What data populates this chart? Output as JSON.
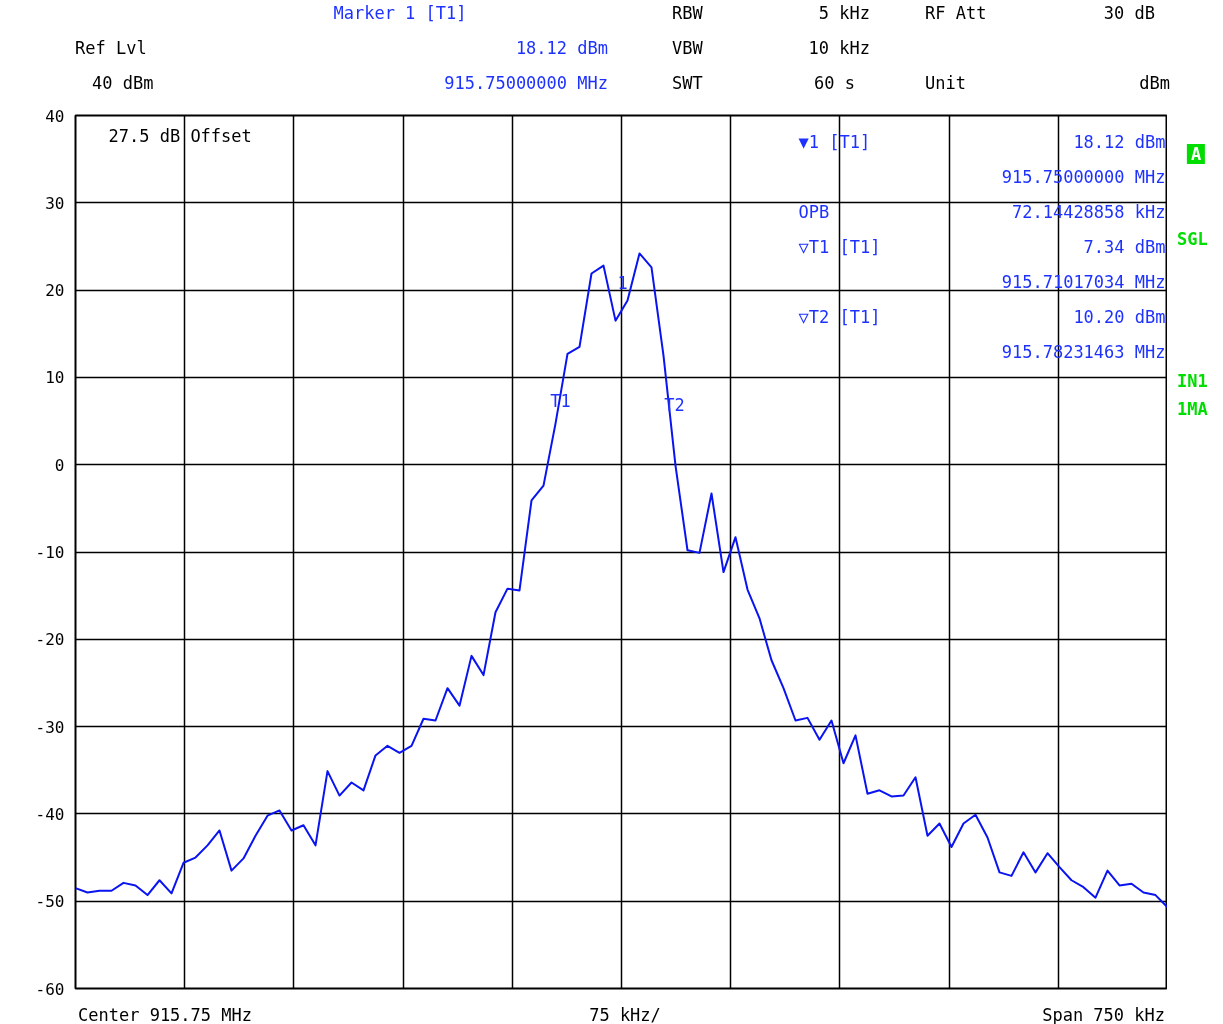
{
  "chart_data": {
    "type": "line",
    "categories": [
      null,
      null,
      null,
      null,
      null,
      null,
      null,
      null,
      null,
      null,
      null,
      null,
      null,
      null,
      null,
      null,
      null,
      null,
      null,
      null,
      null,
      null,
      null,
      null,
      null,
      null,
      null,
      null,
      null,
      null,
      null,
      null,
      null,
      null,
      null,
      null,
      null,
      null,
      null,
      null,
      null,
      null,
      null,
      null,
      null,
      null,
      null,
      null,
      null,
      null,
      null,
      null,
      null,
      null,
      null,
      null,
      null,
      null,
      null,
      null,
      null,
      null,
      null,
      null,
      null,
      null,
      null,
      null,
      null,
      null,
      null,
      null,
      null,
      null,
      null,
      null,
      null,
      null,
      null,
      null,
      null,
      null,
      null,
      null,
      null,
      null,
      null,
      null,
      null,
      null,
      null,
      null
    ],
    "ylim": [
      -60,
      40
    ],
    "yticks": [
      -60,
      -50,
      -40,
      -30,
      -20,
      -10,
      0,
      10,
      20,
      30,
      40
    ],
    "grid": true,
    "line_style": "solid",
    "series": [
      {
        "color": "#0a14f0",
        "values": [
          -48.5,
          -49,
          -48.8,
          -48.8,
          -47.9,
          -48.2,
          -49.3,
          -47.6,
          -49.1,
          -45.6,
          -45.0,
          -43.6,
          -41.9,
          -46.5,
          -45.1,
          -42.5,
          -40.2,
          -39.6,
          -41.9,
          -41.3,
          -43.6,
          -35.1,
          -37.9,
          -36.4,
          -37.3,
          -33.3,
          -32.2,
          -33.0,
          -32.2,
          -29.1,
          -29.3,
          -25.6,
          -27.6,
          -21.9,
          -24.1,
          -16.9,
          -14.2,
          -14.4,
          -4.1,
          -2.4,
          4.7,
          12.7,
          13.5,
          21.9,
          22.8,
          16.5,
          18.8,
          24.2,
          22.6,
          12.5,
          -0.1,
          -9.8,
          -10.1,
          -3.3,
          -12.3,
          -8.3,
          -14.3,
          -17.6,
          -22.4,
          -25.6,
          -29.3,
          -29.0,
          -31.5,
          -29.3,
          -34.2,
          -31.0,
          -37.7,
          -37.3,
          -38.0,
          -37.9,
          -35.8,
          -42.5,
          -41.1,
          -43.8,
          -41.1,
          -40.1,
          -42.7,
          -46.7,
          -47.1,
          -44.4,
          -46.7,
          -44.5,
          -46.1,
          -47.6,
          -48.4,
          -49.6,
          -46.5,
          -48.2,
          -48.0,
          -49.0,
          -49.3,
          -50.7
        ]
      }
    ],
    "annotations": [
      "Marker 1 [T1]",
      "18.12 dBm",
      "915.75000000 MHz",
      "RBW",
      "5 kHz",
      "VBW",
      "10 kHz",
      "SWT",
      "60 s",
      "RF Att",
      "30 dB",
      "Unit",
      "dBm",
      "Ref Lvl",
      "40 dBm",
      "27.5 dB Offset",
      "▼1 [T1]",
      "18.12 dBm",
      "915.75000000 MHz",
      "OPB",
      "72.14428858 kHz",
      "▽T1 [T1]",
      "7.34 dBm",
      "915.71017034 MHz",
      "▽T2 [T1]",
      "10.20 dBm",
      "915.78231463 MHz",
      "A",
      "SGL",
      "IN1",
      "1MA",
      "Center 915.75 MHz",
      "75 kHz/",
      "Span 750 kHz",
      "1",
      "T1",
      "T2"
    ]
  }
}
